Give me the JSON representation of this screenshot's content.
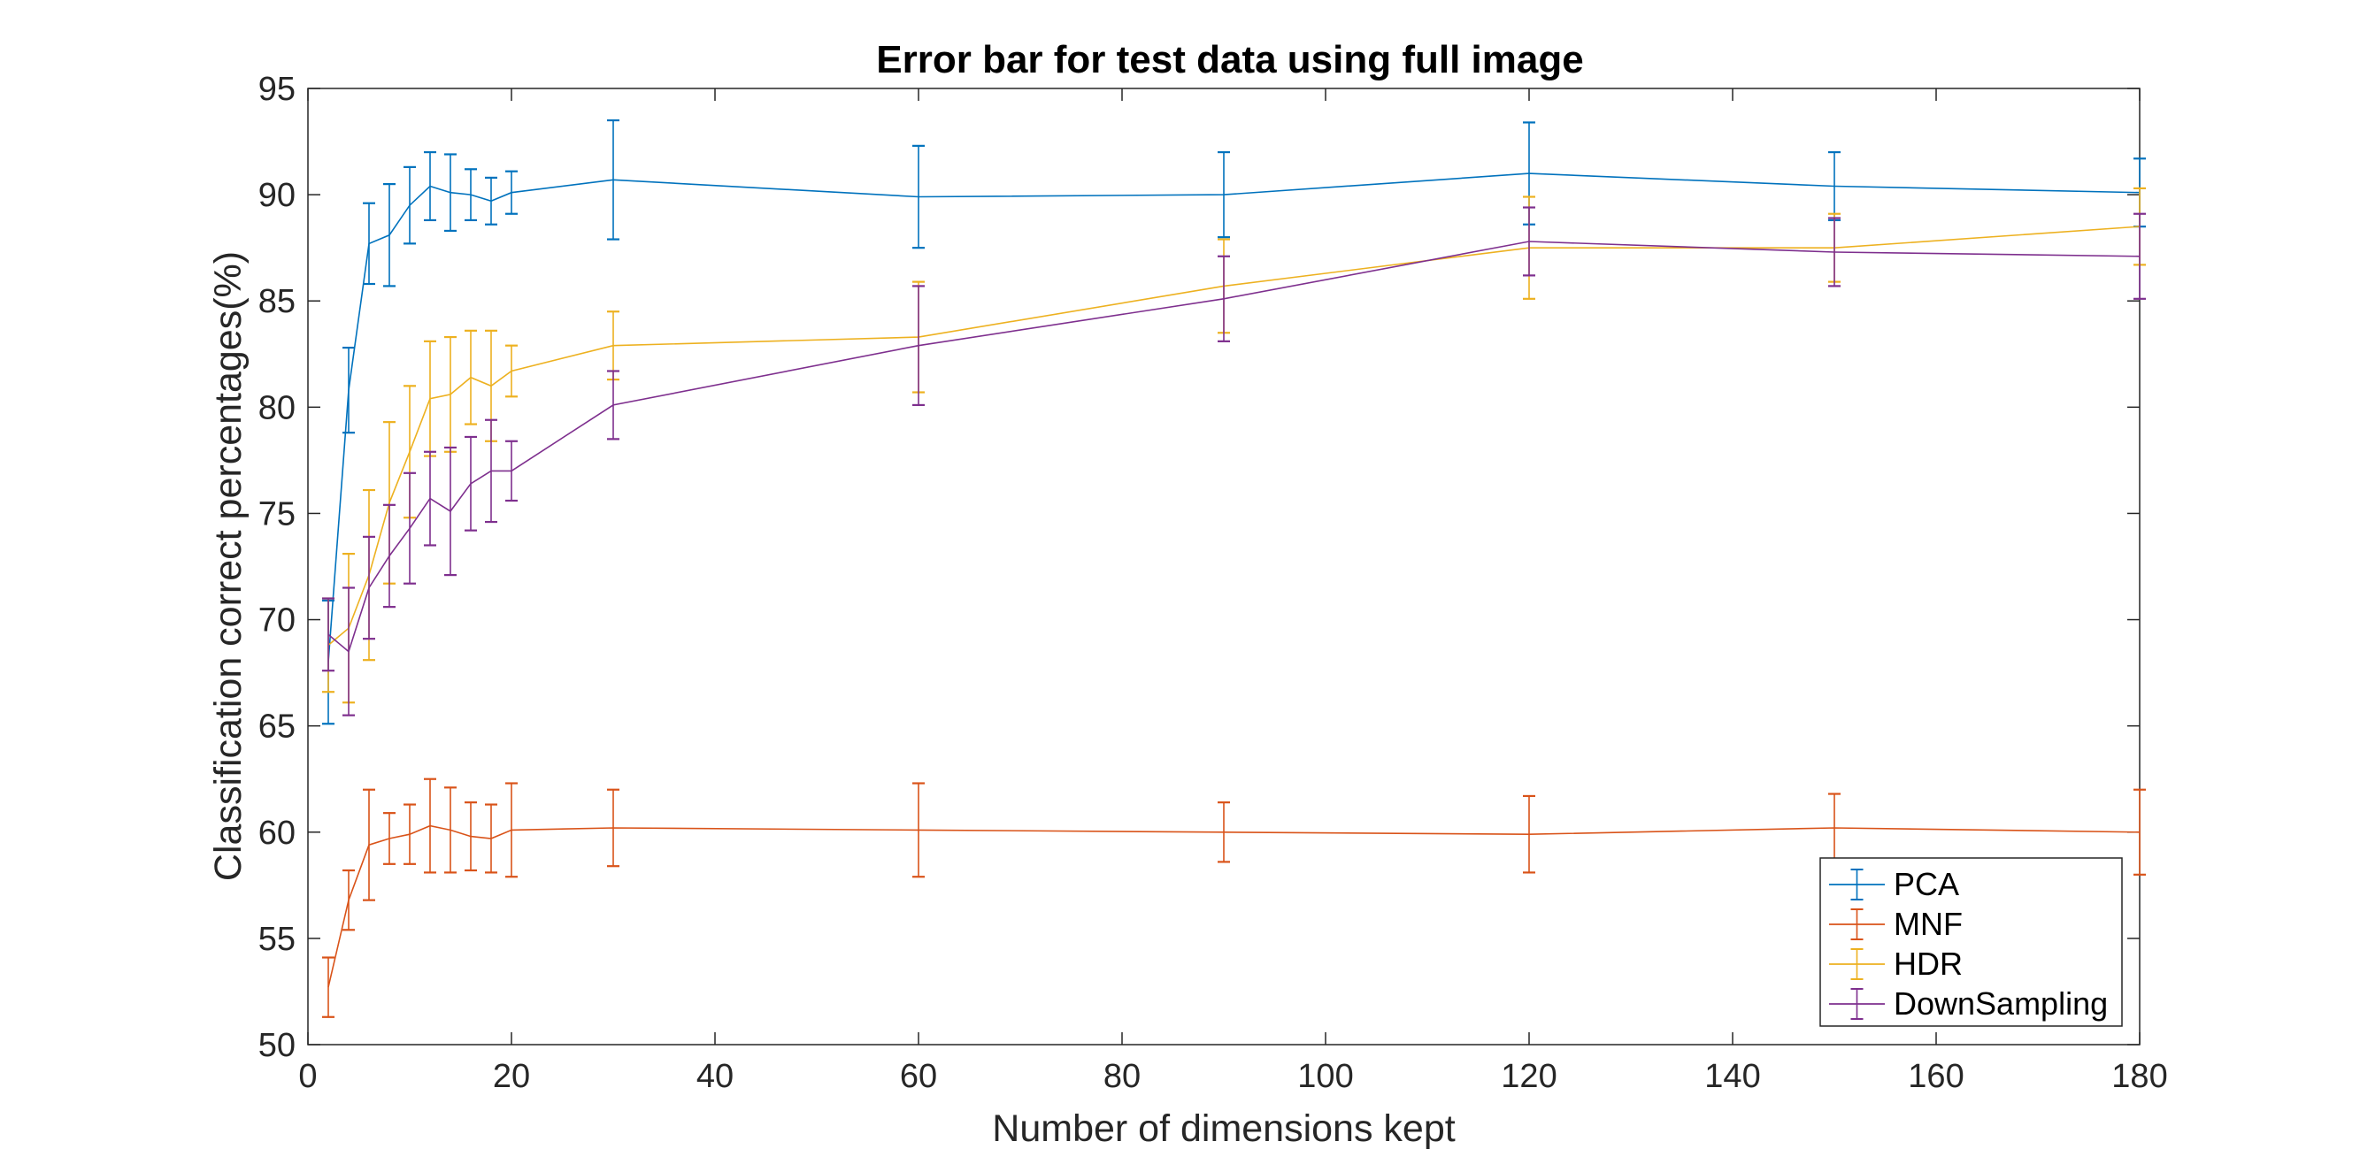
{
  "chart_data": {
    "type": "line",
    "title": "Error bar for test data using full image",
    "xlabel": "Number of dimensions kept",
    "ylabel": "Classification correct percentages(%)",
    "xlim": [
      0,
      180
    ],
    "ylim": [
      50,
      95
    ],
    "xticks": [
      "0",
      "20",
      "40",
      "60",
      "80",
      "100",
      "120",
      "140",
      "160",
      "180"
    ],
    "yticks": [
      "50",
      "55",
      "60",
      "65",
      "70",
      "75",
      "80",
      "85",
      "90",
      "95"
    ],
    "grid": false,
    "legend_position": "bottom-right",
    "x": [
      2,
      4,
      6,
      8,
      10,
      12,
      14,
      16,
      18,
      20,
      30,
      60,
      90,
      120,
      150,
      180
    ],
    "series": [
      {
        "name": "PCA",
        "color": "#0072BD",
        "values": [
          68.0,
          80.8,
          87.7,
          88.1,
          89.5,
          90.4,
          90.1,
          90.0,
          89.7,
          90.1,
          90.7,
          89.9,
          90.0,
          91.0,
          90.4,
          90.1
        ],
        "errors": [
          2.9,
          2.0,
          1.9,
          2.4,
          1.8,
          1.6,
          1.8,
          1.2,
          1.1,
          1.0,
          2.8,
          2.4,
          2.0,
          2.4,
          1.6,
          1.6
        ]
      },
      {
        "name": "MNF",
        "color": "#D95319",
        "values": [
          52.7,
          56.8,
          59.4,
          59.7,
          59.9,
          60.3,
          60.1,
          59.8,
          59.7,
          60.1,
          60.2,
          60.1,
          60.0,
          59.9,
          60.2,
          60.0
        ],
        "errors": [
          1.4,
          1.4,
          2.6,
          1.2,
          1.4,
          2.2,
          2.0,
          1.6,
          1.6,
          2.2,
          1.8,
          2.2,
          1.4,
          1.8,
          1.6,
          2.0
        ]
      },
      {
        "name": "HDR",
        "color": "#EDB120",
        "values": [
          68.8,
          69.6,
          72.1,
          75.5,
          77.9,
          80.4,
          80.6,
          81.4,
          81.0,
          81.7,
          82.9,
          83.3,
          85.7,
          87.5,
          87.5,
          88.5
        ],
        "errors": [
          2.2,
          3.5,
          4.0,
          3.8,
          3.1,
          2.7,
          2.7,
          2.2,
          2.6,
          1.2,
          1.6,
          2.6,
          2.2,
          2.4,
          1.6,
          1.8
        ]
      },
      {
        "name": "DownSampling",
        "color": "#7E2F8E",
        "values": [
          69.3,
          68.5,
          71.5,
          73.0,
          74.3,
          75.7,
          75.1,
          76.4,
          77.0,
          77.0,
          80.1,
          82.9,
          85.1,
          87.8,
          87.3,
          87.1
        ],
        "errors": [
          1.7,
          3.0,
          2.4,
          2.4,
          2.6,
          2.2,
          3.0,
          2.2,
          2.4,
          1.4,
          1.6,
          2.8,
          2.0,
          1.6,
          1.6,
          2.0
        ]
      }
    ]
  }
}
